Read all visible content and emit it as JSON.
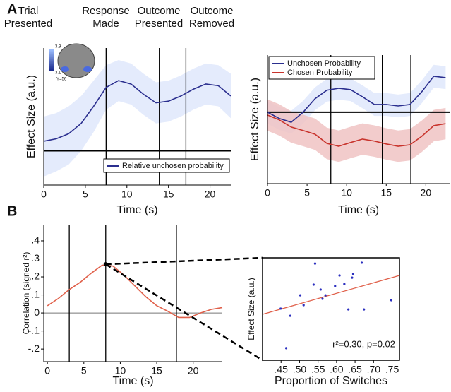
{
  "panel_labels": [
    "A",
    "B"
  ],
  "events": [
    [
      "Trial",
      "Presented"
    ],
    [
      "Response",
      "Made"
    ],
    [
      "Outcome",
      "Presented"
    ],
    [
      "Outcome",
      "Removed"
    ]
  ],
  "brain_inset": {
    "labels": [
      "3.9",
      "3.1",
      "Y=56"
    ]
  },
  "chart_data": [
    {
      "type": "line",
      "xlabel": "Time (s)",
      "ylabel": "Effect Size (a.u.)",
      "x": [
        0,
        1.5,
        3,
        4.5,
        6,
        7.5,
        9,
        10.5,
        12,
        13.5,
        15,
        16.5,
        18,
        19.5,
        21,
        22.5
      ],
      "xlim": [
        0,
        22.5
      ],
      "xticks": [
        0,
        5,
        10,
        15,
        20
      ],
      "ylim": [
        -1,
        3
      ],
      "hline": 0,
      "vlines": [
        7.5,
        13.9,
        17.1
      ],
      "legend": "lower right",
      "series": [
        {
          "name": "Relative unchosen probability",
          "color": "#2b2f8f",
          "band_color": "#dfe8fb",
          "values": [
            0.28,
            0.35,
            0.5,
            0.8,
            1.3,
            1.85,
            2.05,
            1.95,
            1.65,
            1.4,
            1.45,
            1.6,
            1.8,
            1.95,
            1.9,
            1.6
          ],
          "upper": [
            1.0,
            1.1,
            1.3,
            1.6,
            2.05,
            2.5,
            2.65,
            2.55,
            2.25,
            2.0,
            2.05,
            2.2,
            2.4,
            2.55,
            2.5,
            2.25
          ],
          "lower": [
            -0.75,
            -0.6,
            -0.4,
            0.0,
            0.55,
            1.2,
            1.45,
            1.35,
            1.05,
            0.8,
            0.85,
            1.0,
            1.2,
            1.35,
            1.3,
            0.95
          ]
        }
      ]
    },
    {
      "type": "line",
      "xlabel": "Time (s)",
      "ylabel": "Effect Size (a.u.)",
      "x": [
        0,
        1.5,
        3,
        4.5,
        6,
        7.5,
        9,
        10.5,
        12,
        13.5,
        15,
        16.5,
        18,
        19.5,
        21,
        22.5
      ],
      "xlim": [
        0,
        23
      ],
      "xticks": [
        0,
        5,
        10,
        15,
        20
      ],
      "ylim": [
        -2.5,
        2
      ],
      "hline": 0,
      "vlines": [
        8,
        14.5,
        18.1
      ],
      "legend": "upper left",
      "series": [
        {
          "name": "Unchosen Probability",
          "color": "#2b2f8f",
          "band_color": "#dfe8fb",
          "values": [
            0,
            -0.22,
            -0.35,
            0,
            0.47,
            0.77,
            0.84,
            0.79,
            0.54,
            0.27,
            0.27,
            0.22,
            0.27,
            0.72,
            1.26,
            1.21
          ],
          "upper": [
            0.4,
            0.18,
            0.05,
            0.4,
            0.87,
            1.17,
            1.24,
            1.19,
            0.94,
            0.67,
            0.67,
            0.62,
            0.67,
            1.12,
            1.66,
            1.61
          ],
          "lower": [
            -0.4,
            -0.62,
            -0.75,
            -0.4,
            0.07,
            0.37,
            0.44,
            0.39,
            0.14,
            -0.13,
            -0.13,
            -0.18,
            -0.13,
            0.32,
            0.86,
            0.81
          ]
        },
        {
          "name": "Chosen Probability",
          "color": "#c8332c",
          "band_color": "#f0c3c3",
          "values": [
            -0.1,
            -0.27,
            -0.52,
            -0.64,
            -0.77,
            -1.09,
            -1.19,
            -1.06,
            -0.94,
            -1.01,
            -1.11,
            -1.19,
            -1.14,
            -0.84,
            -0.47,
            -0.4
          ],
          "upper": [
            0.45,
            0.28,
            0.03,
            -0.09,
            -0.22,
            -0.54,
            -0.64,
            -0.51,
            -0.39,
            -0.46,
            -0.56,
            -0.64,
            -0.59,
            -0.29,
            0.08,
            0.15
          ],
          "lower": [
            -0.65,
            -0.82,
            -1.07,
            -1.19,
            -1.32,
            -1.64,
            -1.74,
            -1.61,
            -1.49,
            -1.56,
            -1.66,
            -1.74,
            -1.69,
            -1.39,
            -1.02,
            -0.95
          ]
        }
      ]
    },
    {
      "type": "line",
      "xlabel": "Time (s)",
      "ylabel": "Correlation (signed r²)",
      "x": [
        0,
        1.5,
        3,
        4.5,
        6,
        7.5,
        9,
        10.5,
        12,
        13.5,
        15,
        16.5,
        18,
        19.5,
        21,
        22.5,
        24
      ],
      "xlim": [
        -0.5,
        24
      ],
      "xticks": [
        0,
        5,
        10,
        15,
        20
      ],
      "ylim": [
        -0.27,
        0.49
      ],
      "yticks": [
        {
          "value": -0.2,
          "label": "-.2"
        },
        {
          "value": -0.1,
          "label": "-.1"
        },
        0,
        {
          "value": 0.1,
          "label": ".1"
        },
        {
          "value": 0.2,
          "label": ".2"
        },
        {
          "value": 0.3,
          "label": ".3"
        },
        {
          "value": 0.4,
          "label": ".4"
        }
      ],
      "hline": 0,
      "vlines": [
        3,
        8,
        17.7
      ],
      "peak": {
        "x": 8,
        "y": 0.27
      },
      "series": [
        {
          "color": "#e0604a",
          "values": [
            0.04,
            0.08,
            0.13,
            0.17,
            0.22,
            0.265,
            0.26,
            0.21,
            0.15,
            0.09,
            0.04,
            0.01,
            -0.025,
            -0.025,
            0.0,
            0.02,
            0.03
          ]
        }
      ]
    },
    {
      "type": "scatter",
      "xlabel": "Proportion of Switches",
      "ylabel": "Effect Size (a.u.)",
      "annotation": "r²=0.30, p=0.02",
      "xlim": [
        0.4,
        0.77
      ],
      "ylim": [
        -2.5,
        2.5
      ],
      "xticks": [
        {
          "value": 0.45,
          "label": ".45"
        },
        {
          "value": 0.5,
          "label": ".50"
        },
        {
          "value": 0.55,
          "label": ".55"
        },
        {
          "value": 0.6,
          "label": ".60"
        },
        {
          "value": 0.65,
          "label": ".65"
        },
        {
          "value": 0.7,
          "label": ".70"
        },
        {
          "value": 0.75,
          "label": ".75"
        }
      ],
      "color": "#2b2fbf",
      "fit_color": "#e0604a",
      "fit_line": {
        "x": [
          0.4,
          0.77
        ],
        "y": [
          -0.26,
          1.64
        ]
      },
      "x": [
        0.449,
        0.475,
        0.511,
        0.502,
        0.538,
        0.542,
        0.557,
        0.562,
        0.57,
        0.596,
        0.608,
        0.621,
        0.632,
        0.642,
        0.645,
        0.668,
        0.674,
        0.748,
        0.464
      ],
      "values": [
        0.02,
        -0.33,
        0.19,
        0.67,
        1.19,
        2.22,
        0.95,
        0.5,
        0.67,
        1.12,
        1.64,
        1.22,
        -0.02,
        1.53,
        1.71,
        2.26,
        -0.02,
        0.43,
        -1.91
      ]
    }
  ]
}
